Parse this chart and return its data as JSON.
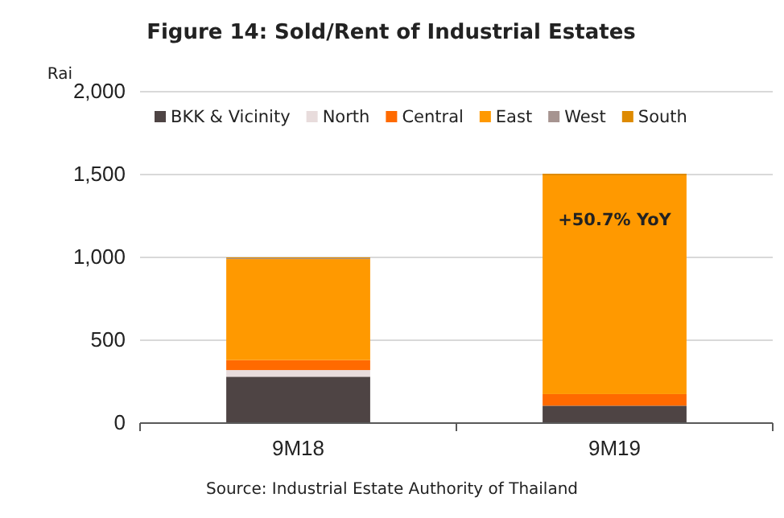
{
  "chart_data": {
    "type": "bar",
    "title": "Figure 14: Sold/Rent of Industrial Estates",
    "ylabel": "Rai",
    "categories": [
      "9M18",
      "9M19"
    ],
    "stacked": true,
    "series": [
      {
        "name": "BKK & Vicinity",
        "color": "#4e4444",
        "values": [
          280,
          105
        ]
      },
      {
        "name": "North",
        "color": "#e8dcdc",
        "values": [
          40,
          0
        ]
      },
      {
        "name": "Central",
        "color": "#ff6a00",
        "values": [
          60,
          70
        ]
      },
      {
        "name": "East",
        "color": "#ff9900",
        "values": [
          610,
          1320
        ]
      },
      {
        "name": "West",
        "color": "#a69490",
        "values": [
          5,
          0
        ]
      },
      {
        "name": "South",
        "color": "#de8a00",
        "values": [
          5,
          10
        ]
      }
    ],
    "ylim": [
      0,
      2000
    ],
    "yticks": [
      0,
      {
        "value": 500,
        "label": "500"
      },
      {
        "value": 1000,
        "label": "1,000"
      },
      {
        "value": 1500,
        "label": "1,500"
      },
      {
        "value": 2000,
        "label": "2,000"
      }
    ],
    "grid": "y",
    "legend": "top",
    "annotations": [
      "+50.7% YoY",
      "Source: Industrial Estate Authority of Thailand"
    ]
  }
}
